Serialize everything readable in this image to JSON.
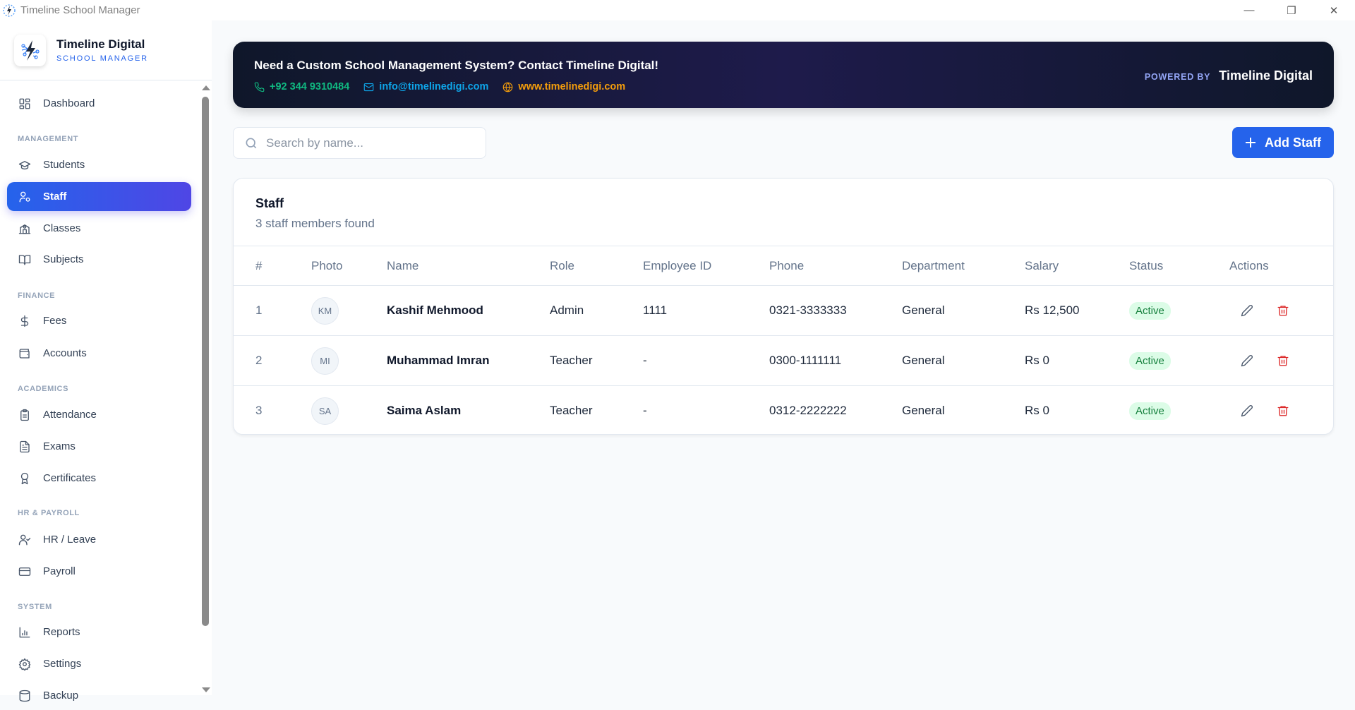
{
  "window": {
    "title": "Timeline School Manager",
    "controls": [
      "minimize-icon",
      "restore-icon",
      "close-icon"
    ]
  },
  "brand": {
    "name": "Timeline Digital",
    "subtitle": "SCHOOL MANAGER"
  },
  "sidebar": {
    "items": [
      {
        "type": "item",
        "label": "Dashboard",
        "icon": "grid-icon"
      },
      {
        "type": "section",
        "label": "MANAGEMENT"
      },
      {
        "type": "item",
        "label": "Students",
        "icon": "graduation-cap-icon"
      },
      {
        "type": "item",
        "label": "Staff",
        "icon": "user-cog-icon",
        "active": true
      },
      {
        "type": "item",
        "label": "Classes",
        "icon": "school-icon"
      },
      {
        "type": "item",
        "label": "Subjects",
        "icon": "book-open-icon"
      },
      {
        "type": "section",
        "label": "FINANCE"
      },
      {
        "type": "item",
        "label": "Fees",
        "icon": "dollar-icon"
      },
      {
        "type": "item",
        "label": "Accounts",
        "icon": "wallet-icon"
      },
      {
        "type": "section",
        "label": "ACADEMICS"
      },
      {
        "type": "item",
        "label": "Attendance",
        "icon": "clipboard-icon"
      },
      {
        "type": "item",
        "label": "Exams",
        "icon": "file-text-icon"
      },
      {
        "type": "item",
        "label": "Certificates",
        "icon": "award-icon"
      },
      {
        "type": "section",
        "label": "HR & PAYROLL"
      },
      {
        "type": "item",
        "label": "HR / Leave",
        "icon": "user-check-icon"
      },
      {
        "type": "item",
        "label": "Payroll",
        "icon": "credit-card-icon"
      },
      {
        "type": "section",
        "label": "SYSTEM"
      },
      {
        "type": "item",
        "label": "Reports",
        "icon": "bar-chart-icon"
      },
      {
        "type": "item",
        "label": "Settings",
        "icon": "gear-icon"
      },
      {
        "type": "item",
        "label": "Backup",
        "icon": "database-icon"
      }
    ]
  },
  "banner": {
    "title": "Need a Custom School Management System? Contact Timeline Digital!",
    "phone": "+92 344 9310484",
    "email": "info@timelinedigi.com",
    "website": "www.timelinedigi.com",
    "powered_by_label": "POWERED BY",
    "powered_by_name": "Timeline Digital",
    "colors": {
      "phone": "#10b981",
      "email": "#0ea5e9",
      "website": "#f59e0b"
    }
  },
  "search": {
    "placeholder": "Search by name...",
    "value": ""
  },
  "toolbar": {
    "add_label": "Add Staff"
  },
  "colors": {
    "accent": "#2563eb",
    "active_badge_bg": "#dcfce7",
    "active_badge_text": "#15803d",
    "delete": "#dc2626"
  },
  "card": {
    "title": "Staff",
    "subtitle": "3 staff members found",
    "columns": [
      "#",
      "Photo",
      "Name",
      "Role",
      "Employee ID",
      "Phone",
      "Department",
      "Salary",
      "Status",
      "Actions"
    ],
    "rows": [
      {
        "num": "1",
        "initials": "KM",
        "name": "Kashif Mehmood",
        "role": "Admin",
        "employee_id": "1111",
        "phone": "0321-3333333",
        "department": "General",
        "salary": "Rs 12,500",
        "status": "Active"
      },
      {
        "num": "2",
        "initials": "MI",
        "name": "Muhammad Imran",
        "role": "Teacher",
        "employee_id": "-",
        "phone": "0300-1111111",
        "department": "General",
        "salary": "Rs 0",
        "status": "Active"
      },
      {
        "num": "3",
        "initials": "SA",
        "name": "Saima Aslam",
        "role": "Teacher",
        "employee_id": "-",
        "phone": "0312-2222222",
        "department": "General",
        "salary": "Rs 0",
        "status": "Active"
      }
    ]
  }
}
